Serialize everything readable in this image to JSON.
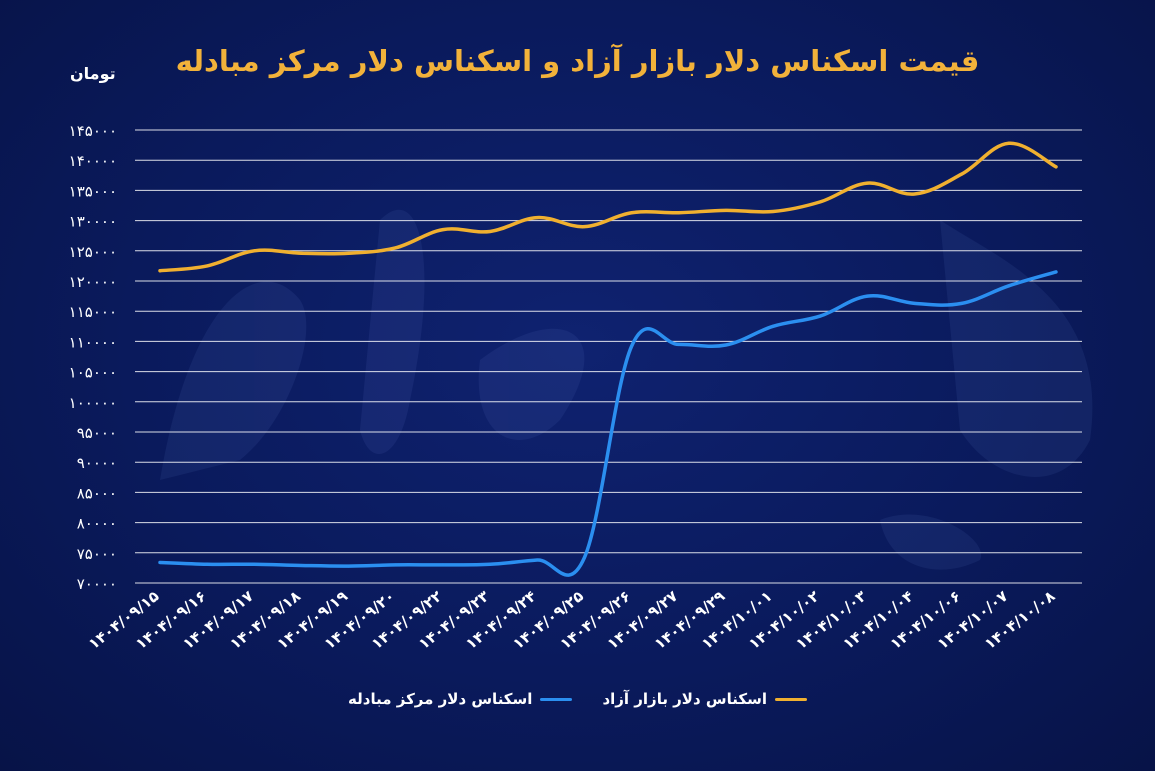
{
  "chart_data": {
    "type": "line",
    "title": "قیمت اسکناس دلار بازار آزاد و اسکناس دلار مرکز مبادله",
    "ylabel": "تومان",
    "xlabel": "",
    "ylim": [
      70000,
      145000
    ],
    "y_ticks": [
      70000,
      75000,
      80000,
      85000,
      90000,
      95000,
      100000,
      105000,
      110000,
      115000,
      120000,
      125000,
      130000,
      135000,
      140000,
      145000
    ],
    "y_tick_labels": [
      "۷۰۰۰۰",
      "۷۵۰۰۰",
      "۸۰۰۰۰",
      "۸۵۰۰۰",
      "۹۰۰۰۰",
      "۹۵۰۰۰",
      "۱۰۰۰۰۰",
      "۱۰۵۰۰۰",
      "۱۱۰۰۰۰",
      "۱۱۵۰۰۰",
      "۱۲۰۰۰۰",
      "۱۲۵۰۰۰",
      "۱۳۰۰۰۰",
      "۱۳۵۰۰۰",
      "۱۴۰۰۰۰",
      "۱۴۵۰۰۰"
    ],
    "categories": [
      "۱۴۰۴/۰۹/۱۵",
      "۱۴۰۴/۰۹/۱۶",
      "۱۴۰۴/۰۹/۱۷",
      "۱۴۰۴/۰۹/۱۸",
      "۱۴۰۴/۰۹/۱۹",
      "۱۴۰۴/۰۹/۲۰",
      "۱۴۰۴/۰۹/۲۲",
      "۱۴۰۴/۰۹/۲۳",
      "۱۴۰۴/۰۹/۲۴",
      "۱۴۰۴/۰۹/۲۵",
      "۱۴۰۴/۰۹/۲۶",
      "۱۴۰۴/۰۹/۲۷",
      "۱۴۰۴/۰۹/۲۹",
      "۱۴۰۴/۱۰/۰۱",
      "۱۴۰۴/۱۰/۰۲",
      "۱۴۰۴/۱۰/۰۳",
      "۱۴۰۴/۱۰/۰۴",
      "۱۴۰۴/۱۰/۰۶",
      "۱۴۰۴/۱۰/۰۷",
      "۱۴۰۴/۱۰/۰۸"
    ],
    "series": [
      {
        "name": "اسکناس دلار بازار آزاد",
        "color": "#f0b030",
        "values": [
          121700,
          122500,
          125000,
          124600,
          124600,
          125500,
          128500,
          128200,
          130500,
          129000,
          131300,
          131300,
          131700,
          131500,
          133100,
          136200,
          134400,
          137700,
          142800,
          138900
        ]
      },
      {
        "name": "اسکناس دلار مرکز مبادله",
        "color": "#2b8ff0",
        "values": [
          73400,
          73100,
          73100,
          72900,
          72800,
          73000,
          73000,
          73100,
          73800,
          74200,
          109200,
          109500,
          109400,
          112500,
          114200,
          117500,
          116300,
          116300,
          119200,
          121500
        ]
      }
    ],
    "grid": true,
    "legend_position": "bottom-center"
  }
}
